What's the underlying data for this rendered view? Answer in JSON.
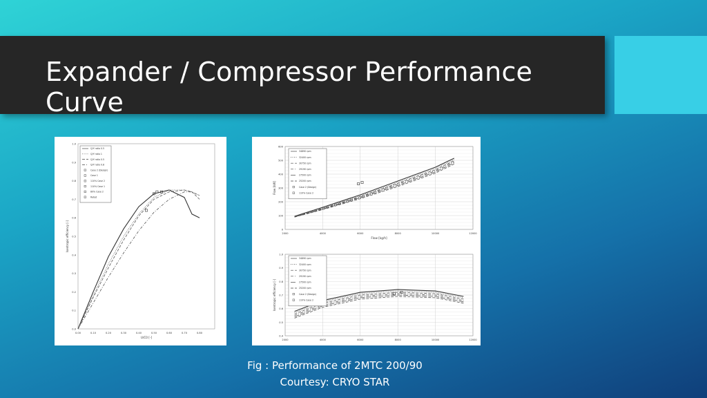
{
  "slide": {
    "title": "Expander / Compressor Performance Curve",
    "caption_line1": "Fig : Performance of 2MTC 200/90",
    "caption_line2": "Courtesy: CRYO STAR",
    "accent_color": "#38cfe6",
    "title_bar_color": "#262626"
  },
  "chart_data": [
    {
      "type": "line",
      "ylabel": "Isentropic efficiency [-]",
      "xlabel": "U/C0 [-]",
      "xlim": [
        0.0,
        0.9
      ],
      "ylim": [
        0.0,
        1.0
      ],
      "x_ticks": [
        "0.00",
        "0.10",
        "0.20",
        "0.30",
        "0.40",
        "0.50",
        "0.60",
        "0.70",
        "0.80"
      ],
      "y_ticks": [
        "0.0",
        "0.1",
        "0.2",
        "0.3",
        "0.4",
        "0.5",
        "0.6",
        "0.7",
        "0.8",
        "0.9",
        "1.0"
      ],
      "legend": [
        "Q/Y ratio 0.5",
        "Q/Y ratio 1",
        "Q/Y ratio 0.5",
        "Q/Y ratio 0.8",
        "Case 2 (Design)",
        "Case 1",
        "110% Case 2",
        "110% Case 1",
        "80% Case 2",
        "Rated"
      ],
      "series": [
        {
          "name": "Q/Y ratio 0.5",
          "style": "solid",
          "x": [
            0.0,
            0.1,
            0.2,
            0.3,
            0.4,
            0.5,
            0.6,
            0.7,
            0.75,
            0.8
          ],
          "y": [
            0.0,
            0.2,
            0.39,
            0.54,
            0.66,
            0.73,
            0.75,
            0.71,
            0.62,
            0.6
          ]
        },
        {
          "name": "Q/Y ratio 1",
          "style": "dotted",
          "x": [
            0.0,
            0.1,
            0.2,
            0.3,
            0.4,
            0.5,
            0.6,
            0.7,
            0.75,
            0.8
          ],
          "y": [
            0.0,
            0.18,
            0.35,
            0.5,
            0.62,
            0.71,
            0.75,
            0.75,
            0.74,
            0.72
          ]
        },
        {
          "name": "Q/Y ratio 0.5",
          "style": "dashed",
          "x": [
            0.0,
            0.1,
            0.2,
            0.3,
            0.4,
            0.5,
            0.6,
            0.7,
            0.75,
            0.8
          ],
          "y": [
            0.0,
            0.17,
            0.33,
            0.48,
            0.61,
            0.7,
            0.74,
            0.75,
            0.74,
            0.7
          ]
        },
        {
          "name": "Q/Y ratio 0.8",
          "style": "dashdot",
          "x": [
            0.0,
            0.1,
            0.2,
            0.3,
            0.4,
            0.5,
            0.6,
            0.7,
            0.75,
            0.8
          ],
          "y": [
            0.0,
            0.14,
            0.28,
            0.41,
            0.53,
            0.63,
            0.7,
            0.74,
            0.74,
            0.72
          ]
        }
      ],
      "points": [
        {
          "x": 0.5,
          "y": 0.73
        },
        {
          "x": 0.52,
          "y": 0.74
        },
        {
          "x": 0.55,
          "y": 0.74
        },
        {
          "x": 0.45,
          "y": 0.64
        }
      ]
    },
    {
      "type": "line",
      "ylabel": "Flow [kW]",
      "xlabel": "Flow [kg/h]",
      "xlim": [
        2000,
        12000
      ],
      "ylim": [
        0,
        600
      ],
      "x_ticks": [
        "2000",
        "4000",
        "6000",
        "8000",
        "10000",
        "12000"
      ],
      "y_ticks": [
        "0",
        "100",
        "200",
        "300",
        "400",
        "500",
        "600"
      ],
      "legend": [
        "34890 rpm",
        "32400 rpm",
        "30750 rpm",
        "29190 rpm",
        "27500 rpm",
        "25200 rpm",
        "Case 2 (Design)",
        "110% Case 2"
      ],
      "series": [
        {
          "name": "34890 rpm",
          "style": "solid",
          "x": [
            2500,
            4000,
            6000,
            8000,
            10000,
            11000
          ],
          "y": [
            95,
            160,
            250,
            350,
            450,
            515
          ]
        },
        {
          "name": "32400 rpm",
          "style": "dotted",
          "x": [
            2500,
            4000,
            6000,
            8000,
            10000,
            11000
          ],
          "y": [
            93,
            155,
            243,
            340,
            440,
            505
          ]
        },
        {
          "name": "30750 rpm",
          "style": "dashed",
          "x": [
            2500,
            4000,
            6000,
            8000,
            10000,
            11000
          ],
          "y": [
            92,
            152,
            238,
            333,
            432,
            497
          ]
        },
        {
          "name": "29190 rpm",
          "style": "dashdot",
          "x": [
            2500,
            4000,
            6000,
            8000,
            10000,
            11000
          ],
          "y": [
            91,
            149,
            233,
            326,
            424,
            490
          ]
        },
        {
          "name": "27500 rpm",
          "style": "longdash",
          "x": [
            2500,
            4000,
            6000,
            8000,
            10000,
            11000
          ],
          "y": [
            90,
            146,
            228,
            318,
            416,
            482
          ]
        },
        {
          "name": "25200 rpm",
          "style": "dashed",
          "x": [
            2500,
            4000,
            6000,
            8000,
            10000,
            11000
          ],
          "y": [
            89,
            143,
            222,
            310,
            407,
            473
          ]
        }
      ],
      "points": [
        {
          "x": 5900,
          "y": 330
        },
        {
          "x": 6100,
          "y": 340
        }
      ]
    },
    {
      "type": "line",
      "ylabel": "Isentropic efficiency [-]",
      "xlabel": "",
      "xlim": [
        2000,
        12000
      ],
      "ylim": [
        0.4,
        1.0
      ],
      "x_ticks": [
        "2000",
        "4000",
        "6000",
        "8000",
        "10000",
        "12000"
      ],
      "y_ticks": [
        "0.4",
        "0.5",
        "0.6",
        "0.7",
        "0.8",
        "0.9",
        "1.0"
      ],
      "legend": [
        "34890 rpm",
        "32400 rpm",
        "30750 rpm",
        "29190 rpm",
        "27500 rpm",
        "25200 rpm",
        "Case 2 (Design)",
        "110% Case 2"
      ],
      "series": [
        {
          "name": "34890 rpm",
          "style": "solid",
          "x": [
            2500,
            4000,
            6000,
            8000,
            10000,
            11500
          ],
          "y": [
            0.58,
            0.66,
            0.72,
            0.74,
            0.73,
            0.69
          ]
        },
        {
          "name": "32400 rpm",
          "style": "dotted",
          "x": [
            2500,
            4000,
            6000,
            8000,
            10000,
            11500
          ],
          "y": [
            0.57,
            0.65,
            0.71,
            0.73,
            0.72,
            0.68
          ]
        },
        {
          "name": "30750 rpm",
          "style": "dashed",
          "x": [
            2500,
            4000,
            6000,
            8000,
            10000,
            11500
          ],
          "y": [
            0.56,
            0.64,
            0.7,
            0.72,
            0.71,
            0.67
          ]
        },
        {
          "name": "29190 rpm",
          "style": "dashdot",
          "x": [
            2500,
            4000,
            6000,
            8000,
            10000,
            11500
          ],
          "y": [
            0.55,
            0.63,
            0.69,
            0.71,
            0.7,
            0.66
          ]
        },
        {
          "name": "27500 rpm",
          "style": "longdash",
          "x": [
            2500,
            4000,
            6000,
            8000,
            10000,
            11500
          ],
          "y": [
            0.54,
            0.62,
            0.68,
            0.7,
            0.69,
            0.65
          ]
        },
        {
          "name": "25200 rpm",
          "style": "dashed",
          "x": [
            2500,
            4000,
            6000,
            8000,
            10000,
            11500
          ],
          "y": [
            0.53,
            0.61,
            0.67,
            0.69,
            0.68,
            0.64
          ]
        }
      ],
      "points": [
        {
          "x": 7800,
          "y": 0.71
        },
        {
          "x": 8200,
          "y": 0.72
        }
      ]
    }
  ]
}
